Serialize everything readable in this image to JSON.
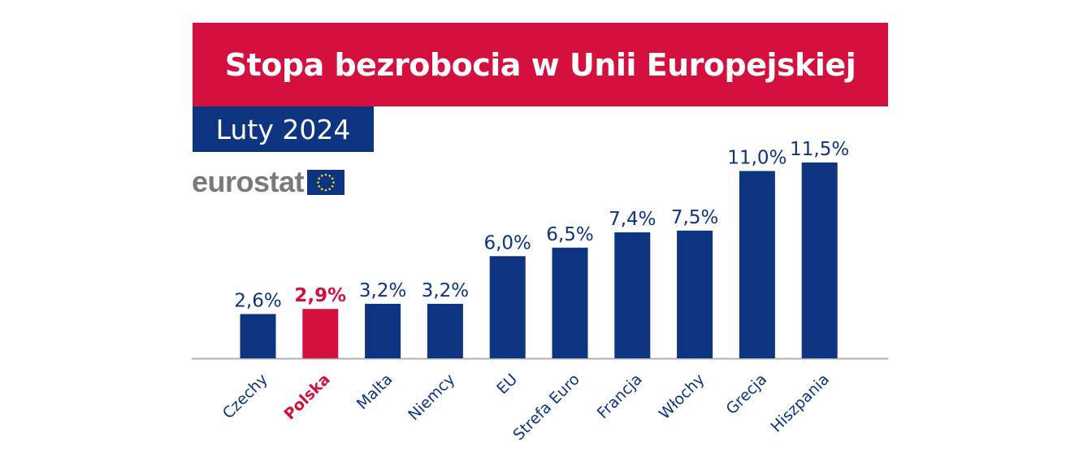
{
  "header": {
    "title": "Stopa bezrobocia w Unii Europejskiej",
    "subtitle": "Luty 2024"
  },
  "logo": {
    "text": "eurostat",
    "icon": "eu-flag-icon"
  },
  "colors": {
    "title_bg": "#d4113e",
    "subtitle_bg": "#0d3480",
    "bar": "#0d3480",
    "highlight": "#d4113e",
    "axis": "#b0b0b0",
    "logo_text": "#7a7a7a"
  },
  "chart_data": {
    "type": "bar",
    "categories": [
      "Czechy",
      "Polska",
      "Malta",
      "Niemcy",
      "EU",
      "Strefa Euro",
      "Francja",
      "Włochy",
      "Grecja",
      "Hiszpania"
    ],
    "values": [
      2.6,
      2.9,
      3.2,
      3.2,
      6.0,
      6.5,
      7.4,
      7.5,
      11.0,
      11.5
    ],
    "value_labels": [
      "2,6%",
      "2,9%",
      "3,2%",
      "3,2%",
      "6,0%",
      "6,5%",
      "7,4%",
      "7,5%",
      "11,0%",
      "11,5%"
    ],
    "highlight_category": "Polska",
    "ylim": [
      0,
      11.5
    ],
    "grid": false,
    "legend": "none",
    "title": "Stopa bezrobocia w Unii Europejskiej",
    "subtitle": "Luty 2024"
  }
}
